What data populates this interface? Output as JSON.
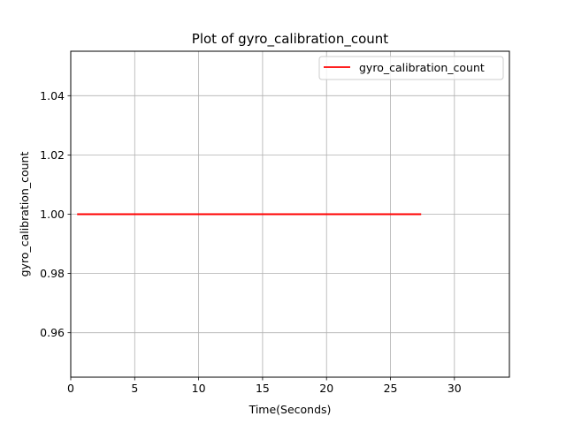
{
  "chart_data": {
    "type": "line",
    "title": "Plot of gyro_calibration_count",
    "xlabel": "Time(Seconds)",
    "ylabel": "gyro_calibration_count",
    "xlim": [
      0,
      34.3
    ],
    "ylim": [
      0.945,
      1.055
    ],
    "xticks": [
      0,
      5,
      10,
      15,
      20,
      25,
      30
    ],
    "yticks": [
      0.96,
      0.98,
      1.0,
      1.02,
      1.04
    ],
    "ytick_labels": [
      "0.96",
      "0.98",
      "1.00",
      "1.02",
      "1.04"
    ],
    "grid": true,
    "legend_position": "top-right",
    "series": [
      {
        "name": "gyro_calibration_count",
        "color": "#ff0000",
        "x": [
          0.5,
          27.4
        ],
        "y": [
          1.0,
          1.0
        ]
      }
    ]
  }
}
